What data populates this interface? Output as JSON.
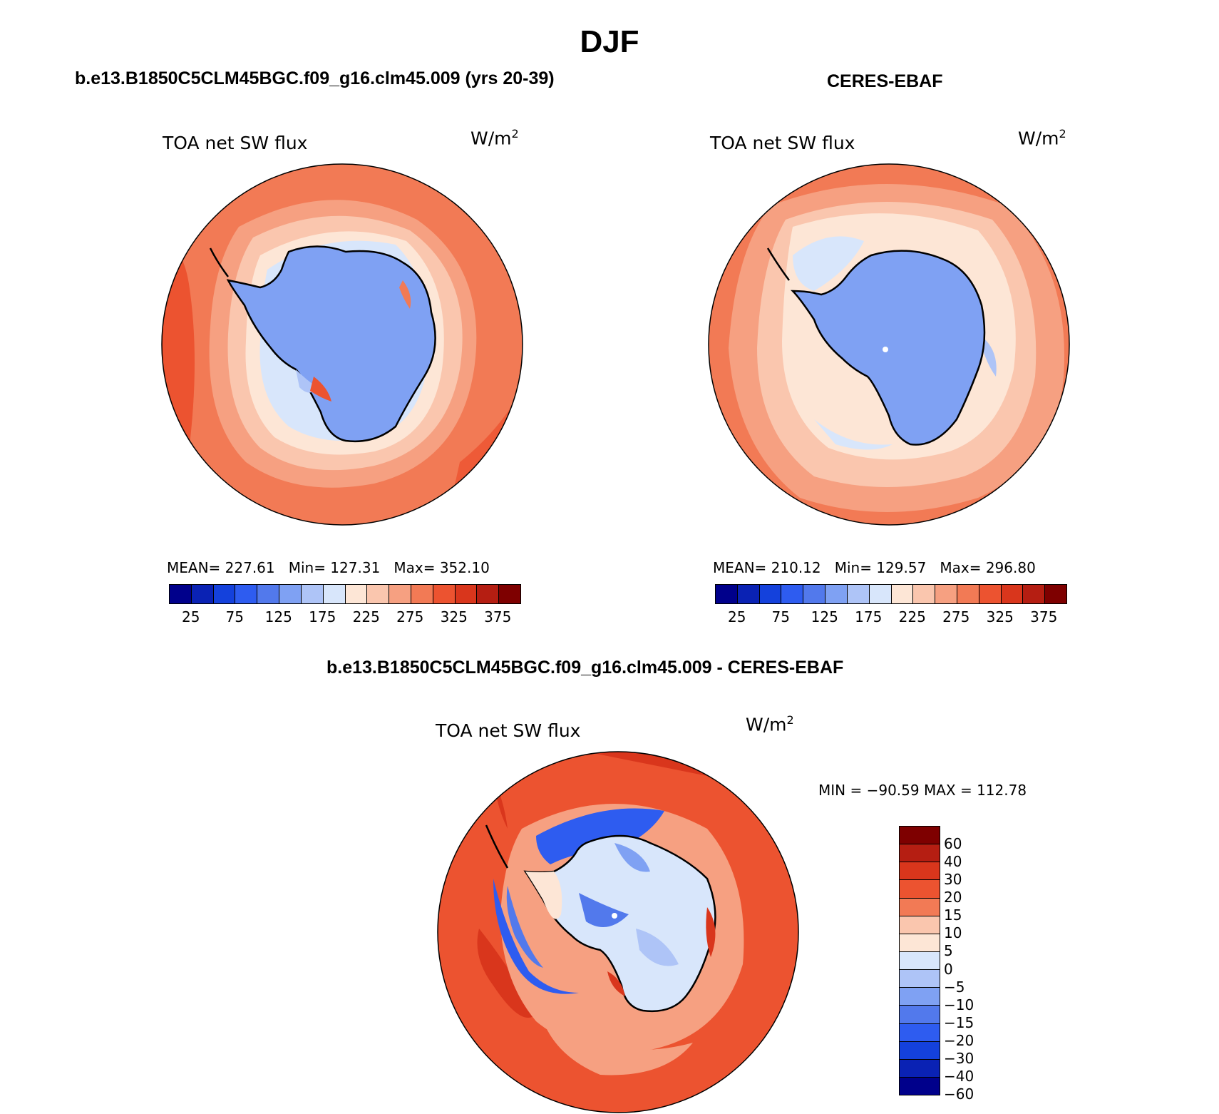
{
  "title": "DJF",
  "panels": {
    "model": {
      "title": "b.e13.B1850C5CLM45BGC.f09_g16.clm45.009 (yrs 20-39)",
      "variable": "TOA net SW flux",
      "units_base": "W/m",
      "units_exp": "2",
      "stats": "MEAN= 227.61   Min= 127.31   Max= 352.10"
    },
    "obs": {
      "title": "CERES-EBAF",
      "variable": "TOA net SW flux",
      "units_base": "W/m",
      "units_exp": "2",
      "stats": "MEAN= 210.12   Min= 129.57   Max= 296.80"
    },
    "diff": {
      "title": "b.e13.B1850C5CLM45BGC.f09_g16.clm45.009 - CERES-EBAF",
      "variable": "TOA net SW flux",
      "units_base": "W/m",
      "units_exp": "2",
      "stats": "MIN = −90.59 MAX = 112.78"
    }
  },
  "abs_colorbar": {
    "colors": [
      "#00008b",
      "#0a22b4",
      "#1441dc",
      "#2e5cf0",
      "#5279ec",
      "#7fa1f3",
      "#aec4f7",
      "#d8e6fb",
      "#fde6d6",
      "#fac6ae",
      "#f6a081",
      "#f27a55",
      "#ec5330",
      "#d9361c",
      "#b51e12",
      "#7e0000"
    ],
    "tick_labels": [
      "25",
      "75",
      "125",
      "175",
      "225",
      "275",
      "325",
      "375"
    ]
  },
  "diff_colorbar": {
    "colors": [
      "#7e0000",
      "#b51e12",
      "#d9361c",
      "#ec5330",
      "#f27a55",
      "#fac6ae",
      "#fde6d6",
      "#d8e6fb",
      "#aec4f7",
      "#7fa1f3",
      "#5279ec",
      "#2e5cf0",
      "#1441dc",
      "#0a22b4",
      "#00008b"
    ],
    "tick_labels": [
      "60",
      "40",
      "30",
      "20",
      "15",
      "10",
      "5",
      "0",
      "−5",
      "−10",
      "−15",
      "−20",
      "−30",
      "−40",
      "−60"
    ]
  }
}
